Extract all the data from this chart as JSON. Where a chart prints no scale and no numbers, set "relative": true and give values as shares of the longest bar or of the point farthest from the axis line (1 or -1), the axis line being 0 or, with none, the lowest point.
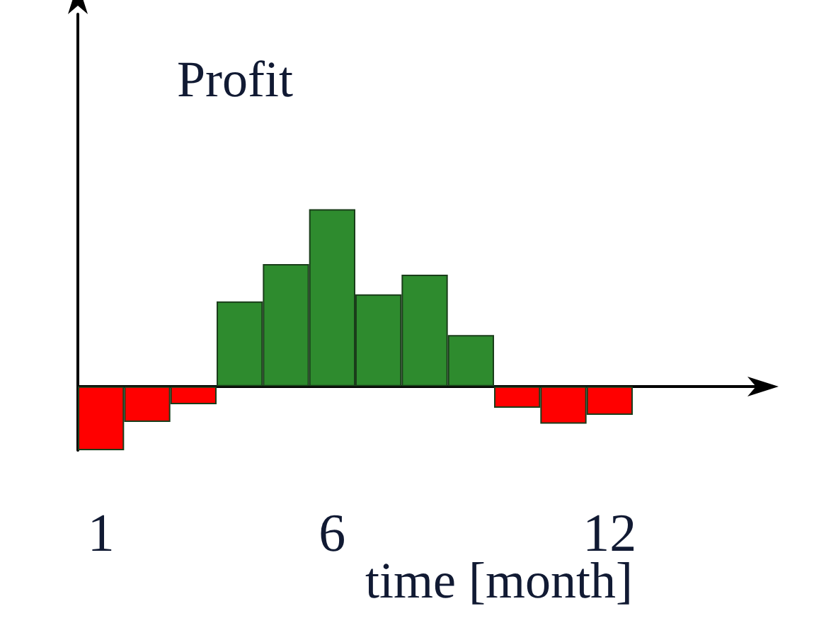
{
  "chart_data": {
    "type": "bar",
    "relative": true,
    "ylabel": "Profit",
    "xlabel": "time [month]",
    "categories": [
      "1",
      null,
      null,
      null,
      null,
      "6",
      null,
      null,
      null,
      null,
      null,
      "12"
    ],
    "values": [
      -0.36,
      -0.2,
      -0.1,
      0.48,
      0.69,
      1,
      0.52,
      0.63,
      0.29,
      -0.12,
      -0.21,
      -0.16
    ],
    "colors": [
      "#ff0000",
      "#ff0000",
      "#ff0000",
      "#2e8b2e",
      "#2e8b2e",
      "#2e8b2e",
      "#2e8b2e",
      "#2e8b2e",
      "#2e8b2e",
      "#ff0000",
      "#ff0000",
      "#ff0000"
    ],
    "grid": false
  }
}
